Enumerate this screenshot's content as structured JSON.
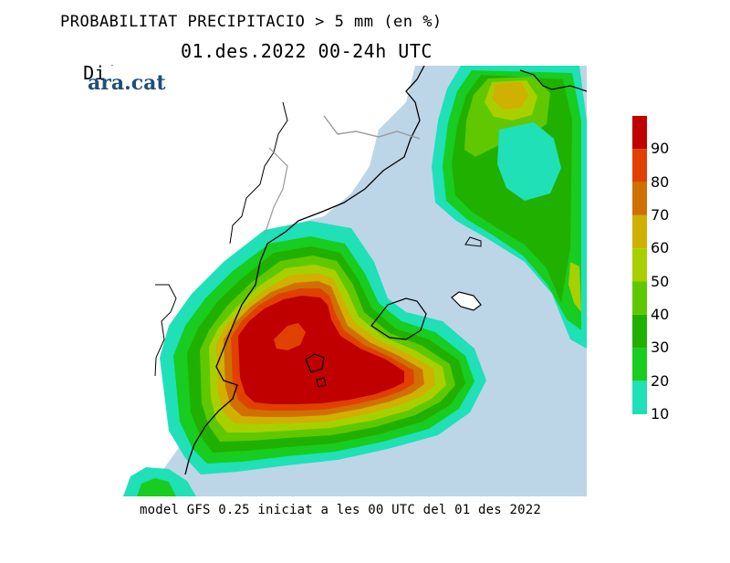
{
  "header": {
    "title": "PROBABILITAT PRECIPITACIO > 5 mm (en %)",
    "day": "Dijous",
    "date_range": "01.des.2022 00-24h UTC"
  },
  "brand": {
    "logo_text": "ara.cat"
  },
  "footer": {
    "model_info": "model GFS 0.25 iniciat a les 00 UTC del 01 des 2022"
  },
  "legend": {
    "ticks": [
      "90",
      "80",
      "70",
      "60",
      "50",
      "40",
      "30",
      "20",
      "10"
    ],
    "colors": {
      "c90": "#c00000",
      "c80": "#e04000",
      "c70": "#d07000",
      "c60": "#d0b000",
      "c50": "#a8d000",
      "c40": "#60c800",
      "c30": "#20b000",
      "c20": "#18cc20",
      "c10": "#20e0b8",
      "sea": "#bcd6e8"
    }
  }
}
